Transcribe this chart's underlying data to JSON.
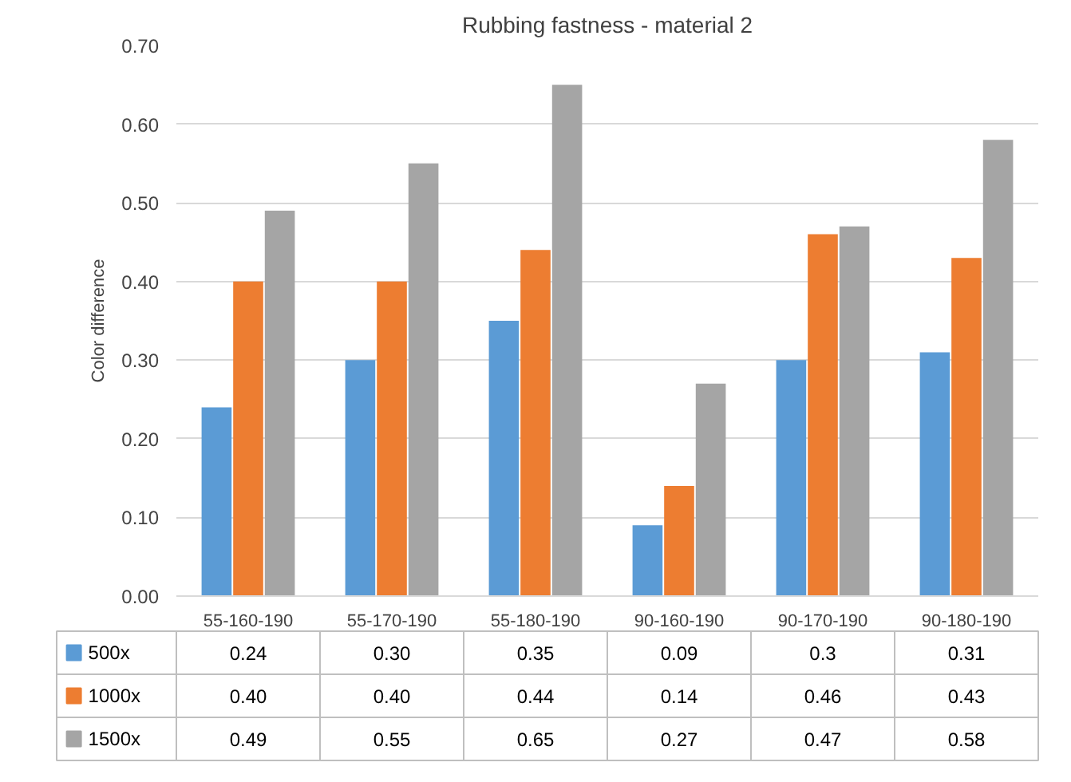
{
  "chart_data": {
    "type": "bar",
    "title": "Rubbing fastness - material 2",
    "ylabel": "Color difference",
    "categories": [
      "55-160-190",
      "55-170-190",
      "55-180-190",
      "90-160-190",
      "90-170-190",
      "90-180-190"
    ],
    "series": [
      {
        "name": "500x",
        "color": "#5b9bd5",
        "values": [
          0.24,
          0.3,
          0.35,
          0.09,
          0.3,
          0.31
        ],
        "value_labels": [
          "0.24",
          "0.30",
          "0.35",
          "0.09",
          "0.3",
          "0.31"
        ]
      },
      {
        "name": "1000x",
        "color": "#ed7d31",
        "values": [
          0.4,
          0.4,
          0.44,
          0.14,
          0.46,
          0.43
        ],
        "value_labels": [
          "0.40",
          "0.40",
          "0.44",
          "0.14",
          "0.46",
          "0.43"
        ]
      },
      {
        "name": "1500x",
        "color": "#a5a5a5",
        "values": [
          0.49,
          0.55,
          0.65,
          0.27,
          0.47,
          0.58
        ],
        "value_labels": [
          "0.49",
          "0.55",
          "0.65",
          "0.27",
          "0.47",
          "0.58"
        ]
      }
    ],
    "ylim": [
      0,
      0.7
    ],
    "yticks": [
      {
        "value": 0,
        "label": "0.00"
      },
      {
        "value": 0.1,
        "label": "0.10"
      },
      {
        "value": 0.2,
        "label": "0.20"
      },
      {
        "value": 0.3,
        "label": "0.30"
      },
      {
        "value": 0.4,
        "label": "0.40"
      },
      {
        "value": 0.5,
        "label": "0.50"
      },
      {
        "value": 0.6,
        "label": "0.60"
      },
      {
        "value": 0.7,
        "label": "0.70"
      }
    ],
    "grid": "y",
    "legend": "bottom"
  }
}
